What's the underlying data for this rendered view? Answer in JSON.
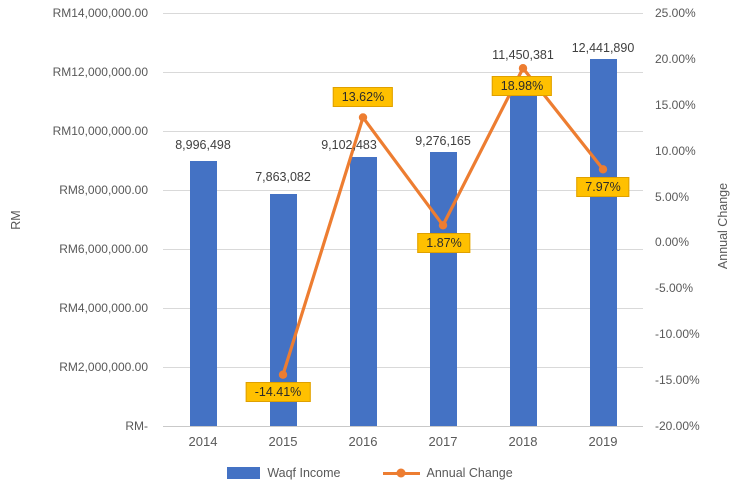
{
  "chart_data": {
    "type": "combo-bar-line",
    "title": "",
    "categories": [
      "2014",
      "2015",
      "2016",
      "2017",
      "2018",
      "2019"
    ],
    "series": [
      {
        "name": "Waqf Income",
        "type": "bar",
        "axis": "left",
        "color": "#4472C4",
        "values": [
          8996498,
          7863082,
          9102483,
          9276165,
          11450381,
          12441890
        ],
        "data_labels": [
          "8,996,498",
          "7,863,082",
          "9,102,483",
          "9,276,165",
          "11,450,381",
          "12,441,890"
        ]
      },
      {
        "name": "Annual Change",
        "type": "line",
        "axis": "right",
        "color": "#ED7D31",
        "values": [
          null,
          -14.41,
          13.62,
          1.87,
          18.98,
          7.97
        ],
        "data_labels": [
          null,
          "-14.41%",
          "13.62%",
          "1.87%",
          "18.98%",
          "7.97%"
        ],
        "label_side": [
          null,
          "below",
          "above",
          "below",
          "below",
          "below"
        ],
        "label_fill": "#FFC000"
      }
    ],
    "left_axis": {
      "title": "RM",
      "min": 0,
      "max": 14000000,
      "step": 2000000,
      "tick_labels": [
        "RM14,000,000.00",
        "RM12,000,000.00",
        "RM10,000,000.00",
        "RM8,000,000.00",
        "RM6,000,000.00",
        "RM4,000,000.00",
        "RM2,000,000.00",
        "RM-"
      ]
    },
    "right_axis": {
      "title": "Annual Change",
      "min": -20,
      "max": 25,
      "step": 5,
      "tick_labels": [
        "25.00%",
        "20.00%",
        "15.00%",
        "10.00%",
        "5.00%",
        "0.00%",
        "-5.00%",
        "-10.00%",
        "-15.00%",
        "-20.00%"
      ]
    },
    "grid": true,
    "legend_position": "bottom",
    "colors": {
      "bar": "#4472C4",
      "line": "#ED7D31",
      "label_box": "#FFC000",
      "gridline": "#D9D9D9",
      "tick_text": "#595959",
      "bar_label_text": "#404040"
    }
  }
}
